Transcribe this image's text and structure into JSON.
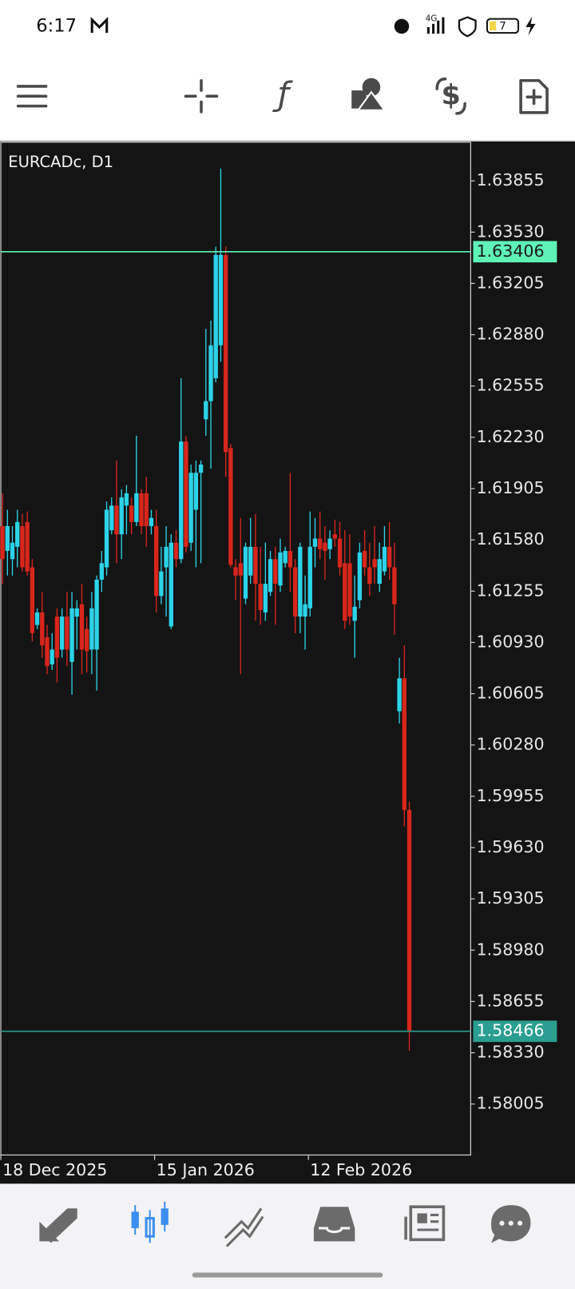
{
  "status_bar": {
    "time": "6:17",
    "network": "4G",
    "battery": "7"
  },
  "chart_data": {
    "type": "candlestick",
    "title": "EURCADc, D1",
    "categories": [
      "18 Dec 2025",
      null,
      null,
      null,
      null,
      null,
      null,
      null,
      null,
      null,
      null,
      null,
      null,
      null,
      null,
      null,
      null,
      null,
      null,
      null,
      null,
      null,
      null,
      null,
      null,
      null,
      null,
      null,
      null,
      null,
      null,
      "15 Jan 2026",
      null,
      null,
      null,
      null,
      null,
      null,
      null,
      null,
      null,
      null,
      null,
      null,
      null,
      null,
      null,
      null,
      null,
      null,
      null,
      null,
      null,
      null,
      null,
      null,
      null,
      null,
      null,
      null,
      null,
      null,
      "12 Feb 2026",
      null,
      null,
      null,
      null,
      null,
      null,
      null,
      null,
      null,
      null,
      null,
      null,
      null,
      null,
      null,
      null,
      null,
      null,
      null,
      null
    ],
    "open": [
      1.61667,
      1.6151,
      1.61458,
      1.61536,
      1.61667,
      1.61693,
      1.61406,
      1.61041,
      1.6112,
      1.60963,
      1.60791,
      1.61094,
      1.60885,
      1.61094,
      1.60807,
      1.61094,
      1.61172,
      1.61015,
      1.60885,
      1.60885,
      1.61328,
      1.61406,
      1.61641,
      1.61797,
      1.61615,
      1.61797,
      1.61797,
      1.61693,
      1.61875,
      1.61875,
      1.61667,
      1.61667,
      1.61224,
      1.61406,
      1.61031,
      1.61562,
      1.61458,
      1.62203,
      1.61562,
      1.61771,
      1.62005,
      1.62344,
      1.62459,
      1.62604,
      1.62813,
      1.63386,
      1.62162,
      1.61406,
      1.61432,
      1.61208,
      1.61354,
      1.61536,
      1.61302,
      1.6112,
      1.6125,
      1.61458,
      1.61291,
      1.61432,
      1.6151,
      1.61406,
      1.61094,
      1.61094,
      1.61146,
      1.61536,
      1.61588,
      1.61562,
      1.61521,
      1.61615,
      1.61588,
      1.61432,
      1.61432,
      1.61067,
      1.61198,
      1.6151,
      1.61406,
      1.61458,
      1.61302,
      1.6138,
      1.61536,
      1.61406,
      1.60494,
      1.60703,
      1.59869
    ],
    "high": [
      1.61875,
      1.61771,
      1.61667,
      1.61771,
      1.61745,
      1.6176,
      1.61458,
      1.61146,
      1.6125,
      1.61041,
      1.60989,
      1.61146,
      1.61146,
      1.6125,
      1.6125,
      1.61198,
      1.61302,
      1.61094,
      1.6125,
      1.61354,
      1.6151,
      1.61823,
      1.61849,
      1.62083,
      1.61901,
      1.61927,
      1.61849,
      1.6224,
      1.61901,
      1.61979,
      1.61771,
      1.61771,
      1.61536,
      1.61667,
      1.61615,
      1.61641,
      1.62604,
      1.6224,
      1.62057,
      1.62083,
      1.62083,
      1.62917,
      1.62969,
      1.63438,
      1.63933,
      1.63438,
      1.62188,
      1.61458,
      1.61719,
      1.61562,
      1.61719,
      1.61745,
      1.61536,
      1.61562,
      1.6151,
      1.61536,
      1.61588,
      1.61536,
      1.62005,
      1.61458,
      1.61562,
      1.61354,
      1.6176,
      1.61719,
      1.6176,
      1.61667,
      1.61641,
      1.61708,
      1.61693,
      1.61641,
      1.61615,
      1.61354,
      1.61562,
      1.61641,
      1.61562,
      1.61667,
      1.61562,
      1.61667,
      1.61693,
      1.61562,
      1.60833,
      1.60911,
      1.59921
    ],
    "low": [
      1.61302,
      1.61354,
      1.61354,
      1.61406,
      1.6138,
      1.61354,
      1.60937,
      1.61015,
      1.60833,
      1.60729,
      1.60755,
      1.60677,
      1.60833,
      1.60781,
      1.60599,
      1.60885,
      1.60729,
      1.60739,
      1.60729,
      1.60625,
      1.6125,
      1.61354,
      1.61615,
      1.61432,
      1.61458,
      1.61615,
      1.61615,
      1.61667,
      1.61615,
      1.61536,
      1.61615,
      1.6112,
      1.61172,
      1.61094,
      1.61015,
      1.61406,
      1.61432,
      1.615,
      1.6151,
      1.61406,
      1.61432,
      1.6224,
      1.62031,
      1.62578,
      1.62709,
      1.61979,
      1.61406,
      1.61198,
      1.60729,
      1.61172,
      1.61302,
      1.61067,
      1.61041,
      1.61067,
      1.61224,
      1.61041,
      1.6125,
      1.61406,
      1.6125,
      1.60989,
      1.60989,
      1.60885,
      1.61094,
      1.61406,
      1.61458,
      1.61328,
      1.61458,
      1.61536,
      1.61354,
      1.61015,
      1.61041,
      1.60833,
      1.61146,
      1.61354,
      1.61224,
      1.61302,
      1.6125,
      1.61354,
      1.61328,
      1.60979,
      1.60416,
      1.59765,
      1.58343
    ],
    "close": [
      1.61458,
      1.61667,
      1.61562,
      1.61693,
      1.61406,
      1.6138,
      1.60989,
      1.6112,
      1.60911,
      1.60781,
      1.60885,
      1.60833,
      1.61094,
      1.60885,
      1.61146,
      1.61146,
      1.60885,
      1.60875,
      1.61146,
      1.61328,
      1.61432,
      1.61771,
      1.61797,
      1.61615,
      1.61849,
      1.61875,
      1.61693,
      1.61875,
      1.61667,
      1.61667,
      1.61719,
      1.61224,
      1.6138,
      1.61536,
      1.61562,
      1.61458,
      1.62203,
      1.61536,
      1.62005,
      1.62005,
      1.62057,
      1.62459,
      1.62813,
      1.63386,
      1.63386,
      1.62136,
      1.61422,
      1.61354,
      1.61354,
      1.61536,
      1.61536,
      1.61302,
      1.61135,
      1.61302,
      1.61458,
      1.61302,
      1.615,
      1.6151,
      1.61406,
      1.61094,
      1.61536,
      1.61172,
      1.61536,
      1.61588,
      1.61521,
      1.6151,
      1.61588,
      1.61588,
      1.61406,
      1.61067,
      1.61094,
      1.61156,
      1.615,
      1.61406,
      1.61302,
      1.61406,
      1.61458,
      1.61536,
      1.61406,
      1.61172,
      1.60703,
      1.59869,
      1.58466
    ],
    "up_color": "#2cd3e8",
    "down_color": "#d8261c",
    "ylim": [
      1.57682,
      1.64105
    ],
    "yticks": [
      1.63855,
      {
        "value": 1.6353,
        "label": "1.63530"
      },
      1.63205,
      {
        "value": 1.6288,
        "label": "1.62880"
      },
      1.62555,
      {
        "value": 1.6223,
        "label": "1.62230"
      },
      1.61905,
      {
        "value": 1.6158,
        "label": "1.61580"
      },
      1.61255,
      {
        "value": 1.6093,
        "label": "1.60930"
      },
      1.60605,
      {
        "value": 1.6028,
        "label": "1.60280"
      },
      1.59955,
      {
        "value": 1.5963,
        "label": "1.59630"
      },
      1.59305,
      {
        "value": 1.5898,
        "label": "1.58980"
      },
      1.58655,
      {
        "value": 1.5833,
        "label": "1.58330"
      },
      1.58005
    ],
    "price_lines": [
      {
        "value": 1.63406,
        "color": "#5ef2b6",
        "text_color": "#1a1a1a"
      },
      {
        "value": 1.58466,
        "color": "#2a9e90",
        "text_color": "#ffffff"
      }
    ]
  }
}
